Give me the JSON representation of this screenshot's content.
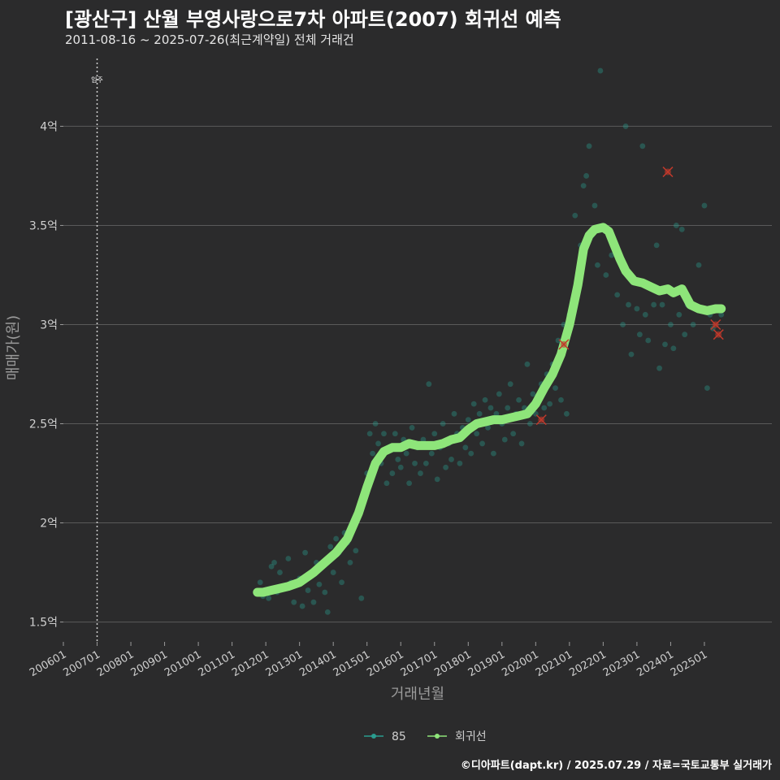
{
  "header": {
    "title": "[광산구] 산월 부영사랑으로7차 아파트(2007) 회귀선 예측",
    "subtitle": "2011-08-16 ~ 2025-07-26(최근계약일) 전체 거래건"
  },
  "footer": {
    "caption": "©디아파트(dapt.kr) / 2025.07.29 / 자료=국토교통부 실거래가"
  },
  "colors": {
    "background": "#2b2b2c",
    "grid": "#5a5a5a",
    "points": "#2a9d8f",
    "regression": "#8ee57a",
    "outlier": "#c0392b"
  },
  "chart_data": {
    "type": "scatter",
    "xlabel": "거래년월",
    "ylabel": "매매가(원)",
    "x_tick_labels": [
      "200601",
      "200701",
      "200801",
      "200901",
      "201001",
      "201101",
      "201201",
      "201301",
      "201401",
      "201501",
      "201601",
      "201701",
      "201801",
      "201901",
      "202001",
      "202101",
      "202201",
      "202301",
      "202401",
      "202501"
    ],
    "y_ticks": [
      1.5,
      2,
      2.5,
      3,
      3.5,
      4
    ],
    "y_tick_labels": [
      "1.5억",
      "2억",
      "2.5억",
      "3억",
      "3.5억",
      "4억"
    ],
    "y_unit": "억",
    "xlim": [
      "2006-01",
      "2027-01"
    ],
    "ylim": [
      1.4,
      4.35
    ],
    "annotation": {
      "label": "입주",
      "x": "2007-01"
    },
    "legend": {
      "position": "bottom",
      "items": [
        {
          "name": "85",
          "kind": "points"
        },
        {
          "name": "회귀선",
          "kind": "line"
        }
      ]
    },
    "regression": [
      [
        "2011-10",
        1.65
      ],
      [
        "2011-12",
        1.65
      ],
      [
        "2012-03",
        1.66
      ],
      [
        "2012-06",
        1.67
      ],
      [
        "2012-09",
        1.68
      ],
      [
        "2013-01",
        1.7
      ],
      [
        "2013-06",
        1.75
      ],
      [
        "2013-10",
        1.8
      ],
      [
        "2014-02",
        1.85
      ],
      [
        "2014-06",
        1.92
      ],
      [
        "2014-10",
        2.05
      ],
      [
        "2015-01",
        2.18
      ],
      [
        "2015-04",
        2.3
      ],
      [
        "2015-07",
        2.36
      ],
      [
        "2015-10",
        2.38
      ],
      [
        "2016-01",
        2.38
      ],
      [
        "2016-04",
        2.4
      ],
      [
        "2016-07",
        2.39
      ],
      [
        "2016-10",
        2.39
      ],
      [
        "2017-01",
        2.39
      ],
      [
        "2017-04",
        2.4
      ],
      [
        "2017-07",
        2.42
      ],
      [
        "2017-10",
        2.43
      ],
      [
        "2018-01",
        2.47
      ],
      [
        "2018-04",
        2.5
      ],
      [
        "2018-07",
        2.51
      ],
      [
        "2018-10",
        2.52
      ],
      [
        "2019-01",
        2.52
      ],
      [
        "2019-04",
        2.53
      ],
      [
        "2019-07",
        2.54
      ],
      [
        "2019-10",
        2.55
      ],
      [
        "2020-01",
        2.6
      ],
      [
        "2020-04",
        2.68
      ],
      [
        "2020-07",
        2.75
      ],
      [
        "2020-10",
        2.85
      ],
      [
        "2021-01",
        3.0
      ],
      [
        "2021-04",
        3.2
      ],
      [
        "2021-06",
        3.38
      ],
      [
        "2021-08",
        3.45
      ],
      [
        "2021-10",
        3.48
      ],
      [
        "2022-01",
        3.49
      ],
      [
        "2022-03",
        3.47
      ],
      [
        "2022-05",
        3.4
      ],
      [
        "2022-07",
        3.33
      ],
      [
        "2022-09",
        3.27
      ],
      [
        "2022-12",
        3.22
      ],
      [
        "2023-03",
        3.21
      ],
      [
        "2023-06",
        3.19
      ],
      [
        "2023-09",
        3.17
      ],
      [
        "2023-12",
        3.18
      ],
      [
        "2024-02",
        3.16
      ],
      [
        "2024-05",
        3.18
      ],
      [
        "2024-08",
        3.1
      ],
      [
        "2024-11",
        3.08
      ],
      [
        "2025-02",
        3.07
      ],
      [
        "2025-05",
        3.08
      ],
      [
        "2025-07",
        3.08
      ]
    ],
    "outliers": [
      [
        "2020-03",
        2.52
      ],
      [
        "2020-11",
        2.9
      ],
      [
        "2023-12",
        3.77
      ],
      [
        "2025-05",
        3.0
      ],
      [
        "2025-06",
        2.95
      ]
    ],
    "points": [
      [
        "2011-10",
        1.65
      ],
      [
        "2011-11",
        1.7
      ],
      [
        "2011-12",
        1.63
      ],
      [
        "2012-02",
        1.62
      ],
      [
        "2012-03",
        1.78
      ],
      [
        "2012-04",
        1.8
      ],
      [
        "2012-05",
        1.65
      ],
      [
        "2012-06",
        1.75
      ],
      [
        "2012-07",
        1.68
      ],
      [
        "2012-09",
        1.82
      ],
      [
        "2012-10",
        1.7
      ],
      [
        "2012-11",
        1.6
      ],
      [
        "2013-01",
        1.72
      ],
      [
        "2013-02",
        1.58
      ],
      [
        "2013-03",
        1.85
      ],
      [
        "2013-04",
        1.66
      ],
      [
        "2013-05",
        1.74
      ],
      [
        "2013-06",
        1.6
      ],
      [
        "2013-07",
        1.8
      ],
      [
        "2013-08",
        1.69
      ],
      [
        "2013-09",
        1.78
      ],
      [
        "2013-10",
        1.65
      ],
      [
        "2013-11",
        1.55
      ],
      [
        "2013-12",
        1.88
      ],
      [
        "2014-01",
        1.75
      ],
      [
        "2014-02",
        1.92
      ],
      [
        "2014-03",
        1.85
      ],
      [
        "2014-04",
        1.7
      ],
      [
        "2014-05",
        1.95
      ],
      [
        "2014-06",
        1.9
      ],
      [
        "2014-07",
        1.8
      ],
      [
        "2014-08",
        1.98
      ],
      [
        "2014-09",
        1.86
      ],
      [
        "2014-10",
        2.05
      ],
      [
        "2014-11",
        1.62
      ],
      [
        "2014-12",
        2.15
      ],
      [
        "2015-01",
        2.25
      ],
      [
        "2015-02",
        2.45
      ],
      [
        "2015-03",
        2.35
      ],
      [
        "2015-04",
        2.5
      ],
      [
        "2015-05",
        2.4
      ],
      [
        "2015-06",
        2.3
      ],
      [
        "2015-07",
        2.45
      ],
      [
        "2015-08",
        2.2
      ],
      [
        "2015-09",
        2.38
      ],
      [
        "2015-10",
        2.25
      ],
      [
        "2015-11",
        2.45
      ],
      [
        "2015-12",
        2.32
      ],
      [
        "2016-01",
        2.28
      ],
      [
        "2016-02",
        2.42
      ],
      [
        "2016-03",
        2.35
      ],
      [
        "2016-04",
        2.2
      ],
      [
        "2016-05",
        2.48
      ],
      [
        "2016-06",
        2.3
      ],
      [
        "2016-07",
        2.38
      ],
      [
        "2016-08",
        2.25
      ],
      [
        "2016-09",
        2.42
      ],
      [
        "2016-10",
        2.3
      ],
      [
        "2016-11",
        2.7
      ],
      [
        "2016-12",
        2.35
      ],
      [
        "2017-01",
        2.45
      ],
      [
        "2017-02",
        2.22
      ],
      [
        "2017-03",
        2.38
      ],
      [
        "2017-04",
        2.5
      ],
      [
        "2017-05",
        2.28
      ],
      [
        "2017-06",
        2.4
      ],
      [
        "2017-07",
        2.32
      ],
      [
        "2017-08",
        2.55
      ],
      [
        "2017-09",
        2.45
      ],
      [
        "2017-10",
        2.3
      ],
      [
        "2017-11",
        2.48
      ],
      [
        "2017-12",
        2.38
      ],
      [
        "2018-01",
        2.52
      ],
      [
        "2018-02",
        2.35
      ],
      [
        "2018-03",
        2.6
      ],
      [
        "2018-04",
        2.45
      ],
      [
        "2018-05",
        2.55
      ],
      [
        "2018-06",
        2.4
      ],
      [
        "2018-07",
        2.62
      ],
      [
        "2018-08",
        2.48
      ],
      [
        "2018-09",
        2.58
      ],
      [
        "2018-10",
        2.35
      ],
      [
        "2018-11",
        2.55
      ],
      [
        "2018-12",
        2.65
      ],
      [
        "2019-01",
        2.5
      ],
      [
        "2019-02",
        2.42
      ],
      [
        "2019-03",
        2.58
      ],
      [
        "2019-04",
        2.7
      ],
      [
        "2019-05",
        2.45
      ],
      [
        "2019-06",
        2.55
      ],
      [
        "2019-07",
        2.62
      ],
      [
        "2019-08",
        2.4
      ],
      [
        "2019-09",
        2.58
      ],
      [
        "2019-10",
        2.8
      ],
      [
        "2019-11",
        2.5
      ],
      [
        "2019-12",
        2.65
      ],
      [
        "2020-01",
        2.55
      ],
      [
        "2020-02",
        2.62
      ],
      [
        "2020-03",
        2.7
      ],
      [
        "2020-04",
        2.58
      ],
      [
        "2020-05",
        2.75
      ],
      [
        "2020-06",
        2.6
      ],
      [
        "2020-07",
        2.8
      ],
      [
        "2020-08",
        2.68
      ],
      [
        "2020-09",
        2.92
      ],
      [
        "2020-10",
        2.62
      ],
      [
        "2020-11",
        3.0
      ],
      [
        "2020-12",
        2.55
      ],
      [
        "2021-01",
        3.05
      ],
      [
        "2021-02",
        3.1
      ],
      [
        "2021-03",
        3.55
      ],
      [
        "2021-05",
        3.4
      ],
      [
        "2021-06",
        3.7
      ],
      [
        "2021-07",
        3.75
      ],
      [
        "2021-08",
        3.9
      ],
      [
        "2021-09",
        3.45
      ],
      [
        "2021-10",
        3.6
      ],
      [
        "2021-11",
        3.3
      ],
      [
        "2021-12",
        4.28
      ],
      [
        "2022-02",
        3.25
      ],
      [
        "2022-04",
        3.35
      ],
      [
        "2022-06",
        3.15
      ],
      [
        "2022-08",
        3.0
      ],
      [
        "2022-09",
        4.0
      ],
      [
        "2022-10",
        3.1
      ],
      [
        "2022-11",
        2.85
      ],
      [
        "2023-01",
        3.08
      ],
      [
        "2023-02",
        2.95
      ],
      [
        "2023-03",
        3.9
      ],
      [
        "2023-04",
        3.05
      ],
      [
        "2023-05",
        2.92
      ],
      [
        "2023-07",
        3.1
      ],
      [
        "2023-08",
        3.4
      ],
      [
        "2023-09",
        2.78
      ],
      [
        "2023-10",
        3.1
      ],
      [
        "2023-11",
        2.9
      ],
      [
        "2024-01",
        3.0
      ],
      [
        "2024-02",
        2.88
      ],
      [
        "2024-03",
        3.5
      ],
      [
        "2024-04",
        3.05
      ],
      [
        "2024-05",
        3.48
      ],
      [
        "2024-06",
        2.95
      ],
      [
        "2024-07",
        3.1
      ],
      [
        "2024-09",
        3.0
      ],
      [
        "2024-11",
        3.3
      ],
      [
        "2025-01",
        3.6
      ],
      [
        "2025-02",
        2.68
      ],
      [
        "2025-03",
        3.05
      ],
      [
        "2025-04",
        2.98
      ],
      [
        "2025-07",
        3.05
      ]
    ]
  }
}
